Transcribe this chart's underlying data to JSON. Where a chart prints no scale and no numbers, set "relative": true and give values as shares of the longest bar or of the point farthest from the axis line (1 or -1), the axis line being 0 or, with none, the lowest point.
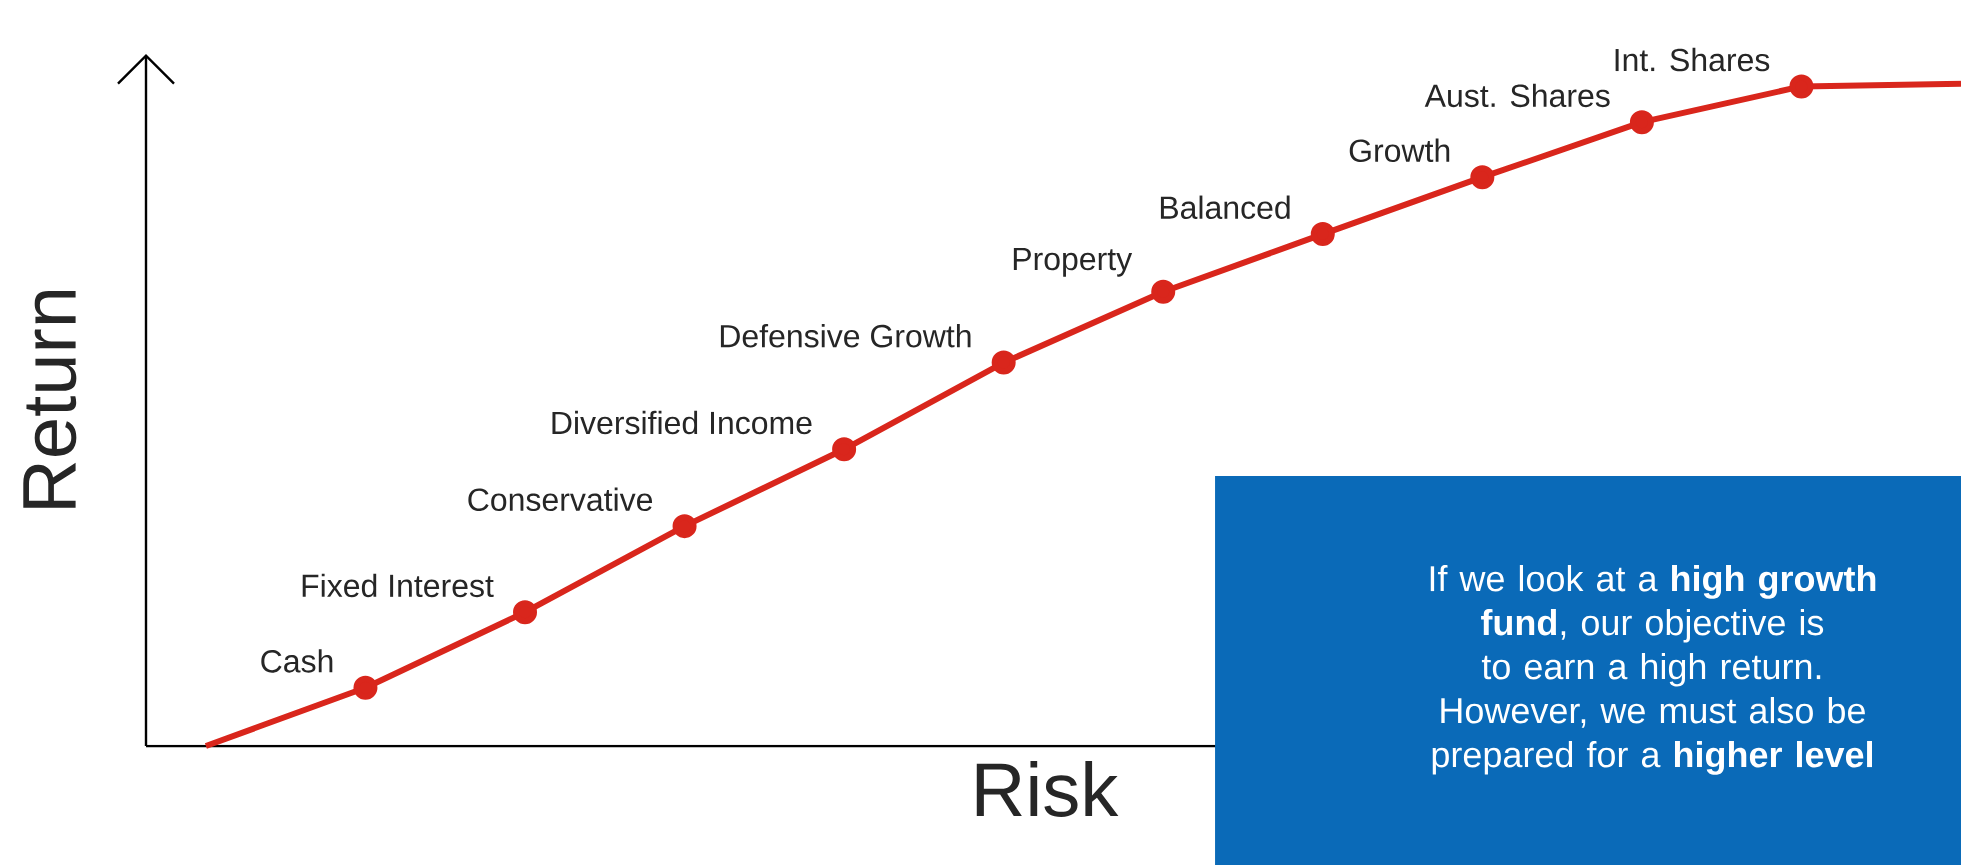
{
  "chart_data": {
    "type": "line",
    "relative": true,
    "xlabel": "Risk",
    "ylabel": "Return",
    "categories": [
      null,
      null,
      null,
      null,
      null,
      null,
      null,
      null,
      null,
      null,
      null,
      null
    ],
    "series": [
      {
        "color": "#d9261c",
        "marker": "circle",
        "values": [
          0,
          0.088,
          0.202,
          0.332,
          0.448,
          0.579,
          0.686,
          0.773,
          0.859,
          0.942,
          0.996,
          1.0
        ]
      }
    ],
    "annotations": [
      "Cash",
      "Fixed Interest",
      "Conservative",
      "Diversified Income",
      "Defensive Growth",
      "Property",
      "Balanced",
      "Growth",
      "Aust. Shares",
      "Int. Shares",
      "If we look at a **high growth fund**, our objective is to earn a high return. However, we must also be prepared for a **higher level**"
    ]
  }
}
